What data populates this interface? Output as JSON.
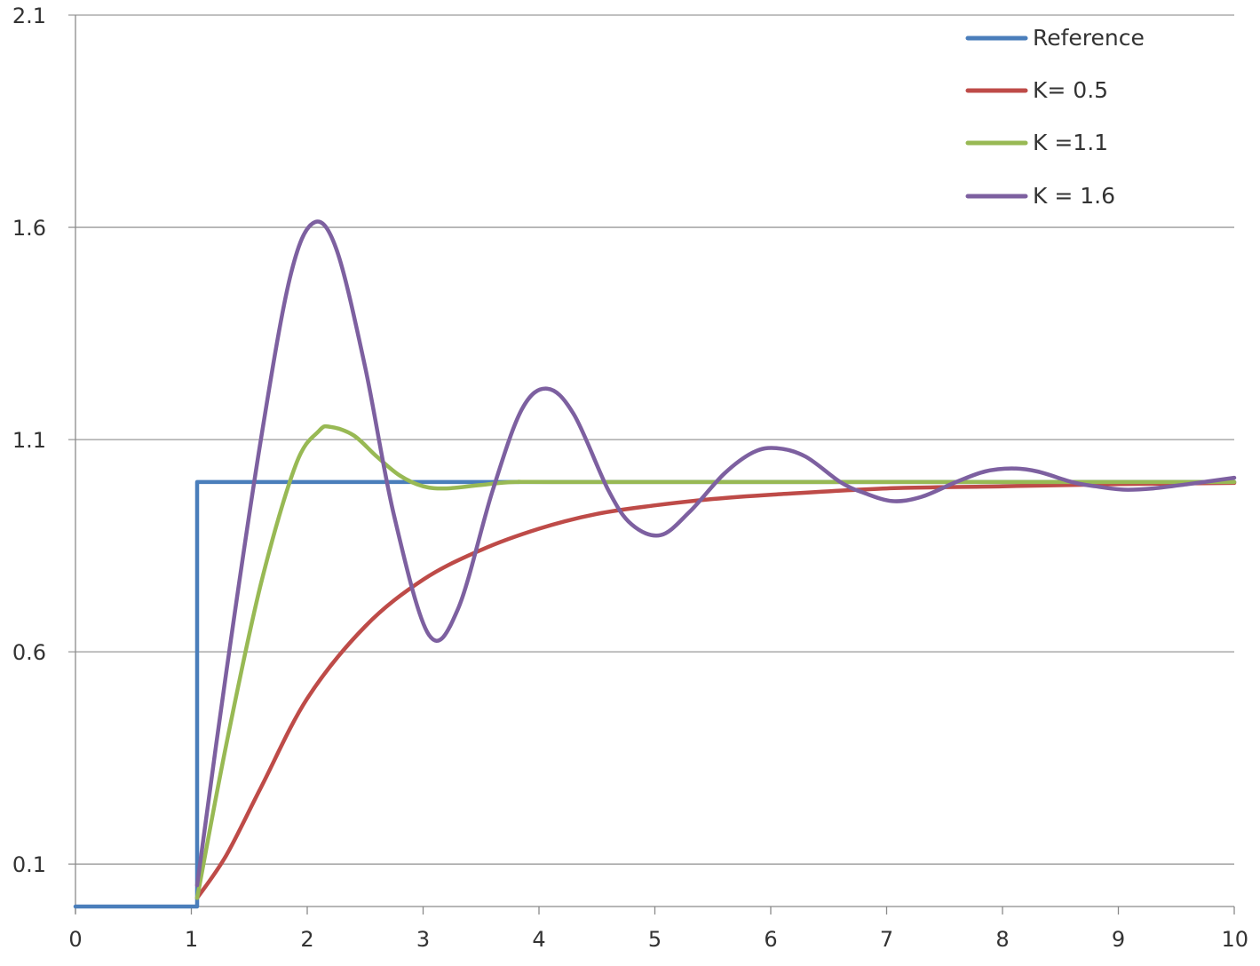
{
  "chart_data": {
    "type": "line",
    "title": "",
    "xlabel": "",
    "ylabel": "",
    "xlim": [
      0,
      10
    ],
    "ylim": [
      0,
      2.1
    ],
    "x_ticks": [
      "0",
      "1",
      "2",
      "3",
      "4",
      "5",
      "6",
      "7",
      "8",
      "9",
      "10"
    ],
    "y_ticks": [
      "0.1",
      "0.6",
      "1.1",
      "1.6",
      "2.1"
    ],
    "grid": "horizontal",
    "legend_position": "top-right",
    "series": [
      {
        "name": "Reference",
        "color": "#4A7EBB",
        "x": [
          0,
          1.05,
          1.05,
          10
        ],
        "y": [
          0,
          0,
          1,
          1
        ]
      },
      {
        "name": "K= 0.5",
        "color": "#BE4B48",
        "x": [
          1.05,
          1.3,
          1.6,
          2.0,
          2.5,
          3.0,
          3.5,
          4.0,
          4.5,
          5.0,
          5.5,
          6.0,
          7.0,
          8.0,
          9.0,
          10.0
        ],
        "y": [
          0.02,
          0.12,
          0.28,
          0.49,
          0.66,
          0.77,
          0.84,
          0.89,
          0.925,
          0.945,
          0.96,
          0.97,
          0.985,
          0.99,
          0.995,
          0.998
        ]
      },
      {
        "name": "K =1.1",
        "color": "#98B954",
        "x": [
          1.05,
          1.3,
          1.6,
          1.9,
          2.1,
          2.2,
          2.4,
          2.6,
          2.8,
          3.0,
          3.2,
          3.5,
          3.8,
          4.5,
          10.0
        ],
        "y": [
          0.02,
          0.38,
          0.76,
          1.04,
          1.12,
          1.13,
          1.11,
          1.06,
          1.015,
          0.99,
          0.985,
          0.993,
          1.0,
          1.0,
          1.0
        ]
      },
      {
        "name": "K = 1.6",
        "color": "#7D60A0",
        "x": [
          1.05,
          1.3,
          1.6,
          1.85,
          2.05,
          2.25,
          2.5,
          2.75,
          3.05,
          3.3,
          3.6,
          3.85,
          4.07,
          4.3,
          4.6,
          4.8,
          5.05,
          5.3,
          5.6,
          5.85,
          6.05,
          6.3,
          6.6,
          6.8,
          7.05,
          7.3,
          7.6,
          7.85,
          8.08,
          8.3,
          8.6,
          8.8,
          9.05,
          9.3,
          9.6,
          10.0
        ],
        "y": [
          0.05,
          0.55,
          1.1,
          1.48,
          1.61,
          1.55,
          1.27,
          0.92,
          0.64,
          0.7,
          0.98,
          1.17,
          1.22,
          1.16,
          0.98,
          0.9,
          0.875,
          0.93,
          1.02,
          1.07,
          1.08,
          1.06,
          1.0,
          0.975,
          0.955,
          0.965,
          1.0,
          1.025,
          1.032,
          1.025,
          1.0,
          0.99,
          0.982,
          0.985,
          0.995,
          1.01
        ]
      }
    ]
  }
}
